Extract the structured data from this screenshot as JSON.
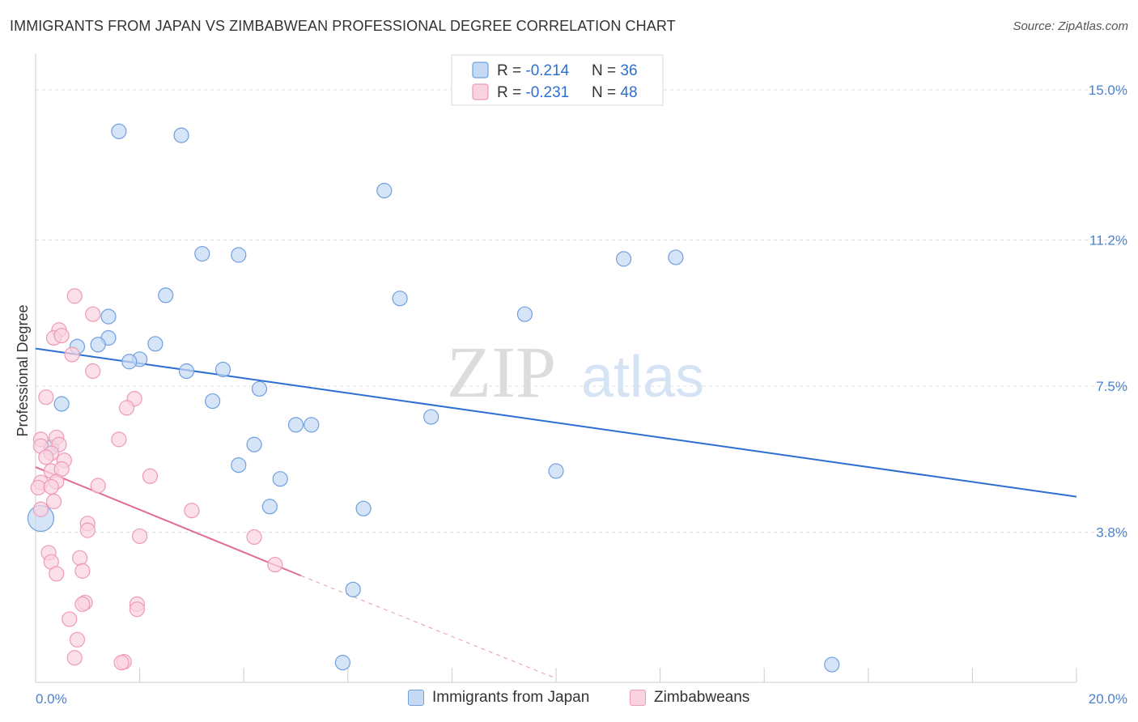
{
  "title": "IMMIGRANTS FROM JAPAN VS ZIMBABWEAN PROFESSIONAL DEGREE CORRELATION CHART",
  "source": "Source: ZipAtlas.com",
  "watermark": {
    "zip": "ZIP",
    "atlas": "atlas"
  },
  "chart_data": {
    "type": "scatter",
    "ylabel": "Professional Degree",
    "xlim": [
      0,
      20
    ],
    "ylim": [
      0,
      15.8
    ],
    "x_ticks": [
      {
        "value": 0,
        "label": "0.0%"
      },
      {
        "value": 20,
        "label": "20.0%"
      }
    ],
    "y_ticks": [
      {
        "value": 3.8,
        "label": "3.8%"
      },
      {
        "value": 7.5,
        "label": "7.5%"
      },
      {
        "value": 11.2,
        "label": "11.2%"
      },
      {
        "value": 15.0,
        "label": "15.0%"
      }
    ],
    "grid": true,
    "legend_position": "bottom-center",
    "stats": [
      {
        "r_label": "R = ",
        "r_value": "-0.214",
        "n_label": "N = ",
        "n_value": "36"
      },
      {
        "r_label": "R = ",
        "r_value": "-0.231",
        "n_label": "N = ",
        "n_value": "48"
      }
    ],
    "series": [
      {
        "name": "Immigrants from Japan",
        "color": "#6fa0e0",
        "fill": "#c5d9f5",
        "line_color": "#2c6fd1",
        "trend": {
          "x0": 0,
          "y0": 8.45,
          "x1": 20,
          "y1": 4.7
        },
        "points": [
          {
            "x": 1.6,
            "y": 13.95
          },
          {
            "x": 2.8,
            "y": 13.85
          },
          {
            "x": 6.7,
            "y": 12.45
          },
          {
            "x": 3.2,
            "y": 10.85
          },
          {
            "x": 3.9,
            "y": 10.82
          },
          {
            "x": 11.3,
            "y": 10.72
          },
          {
            "x": 12.3,
            "y": 10.76
          },
          {
            "x": 2.5,
            "y": 9.8
          },
          {
            "x": 7.0,
            "y": 9.72
          },
          {
            "x": 9.4,
            "y": 9.32
          },
          {
            "x": 1.4,
            "y": 9.26
          },
          {
            "x": 1.4,
            "y": 8.72
          },
          {
            "x": 1.2,
            "y": 8.55
          },
          {
            "x": 0.8,
            "y": 8.5
          },
          {
            "x": 2.3,
            "y": 8.57
          },
          {
            "x": 2.0,
            "y": 8.18
          },
          {
            "x": 1.8,
            "y": 8.12
          },
          {
            "x": 2.9,
            "y": 7.88
          },
          {
            "x": 3.6,
            "y": 7.92
          },
          {
            "x": 4.3,
            "y": 7.43
          },
          {
            "x": 3.4,
            "y": 7.12
          },
          {
            "x": 0.5,
            "y": 7.05
          },
          {
            "x": 7.6,
            "y": 6.72
          },
          {
            "x": 5.0,
            "y": 6.52
          },
          {
            "x": 5.3,
            "y": 6.52
          },
          {
            "x": 4.2,
            "y": 6.02
          },
          {
            "x": 0.3,
            "y": 5.95
          },
          {
            "x": 3.9,
            "y": 5.5
          },
          {
            "x": 10.0,
            "y": 5.35
          },
          {
            "x": 4.7,
            "y": 5.15
          },
          {
            "x": 4.5,
            "y": 4.45
          },
          {
            "x": 6.3,
            "y": 4.4
          },
          {
            "x": 0.1,
            "y": 4.15,
            "size": 16
          },
          {
            "x": 6.1,
            "y": 2.35
          },
          {
            "x": 5.9,
            "y": 0.5
          },
          {
            "x": 15.3,
            "y": 0.45
          }
        ]
      },
      {
        "name": "Zimbabweans",
        "color": "#ee9ab4",
        "fill": "#f9d3df",
        "line_color": "#e06b94",
        "trend": {
          "x0": 0,
          "y0": 5.45,
          "x1": 5.1,
          "y1": 2.7
        },
        "trend_dashed": {
          "x0": 5.1,
          "y0": 2.7,
          "x1": 10.0,
          "y1": 0.1
        },
        "points": [
          {
            "x": 0.75,
            "y": 9.78
          },
          {
            "x": 1.1,
            "y": 9.32
          },
          {
            "x": 0.45,
            "y": 8.92
          },
          {
            "x": 0.35,
            "y": 8.72
          },
          {
            "x": 0.5,
            "y": 8.78
          },
          {
            "x": 0.7,
            "y": 8.3
          },
          {
            "x": 1.1,
            "y": 7.88
          },
          {
            "x": 0.2,
            "y": 7.22
          },
          {
            "x": 1.9,
            "y": 7.18
          },
          {
            "x": 1.75,
            "y": 6.95
          },
          {
            "x": 0.4,
            "y": 6.2
          },
          {
            "x": 1.6,
            "y": 6.15
          },
          {
            "x": 0.1,
            "y": 6.15
          },
          {
            "x": 0.45,
            "y": 6.02
          },
          {
            "x": 0.1,
            "y": 5.98
          },
          {
            "x": 0.3,
            "y": 5.8
          },
          {
            "x": 0.2,
            "y": 5.7
          },
          {
            "x": 0.55,
            "y": 5.62
          },
          {
            "x": 0.3,
            "y": 5.35
          },
          {
            "x": 0.5,
            "y": 5.4
          },
          {
            "x": 2.2,
            "y": 5.22
          },
          {
            "x": 0.4,
            "y": 5.08
          },
          {
            "x": 0.1,
            "y": 5.06
          },
          {
            "x": 1.2,
            "y": 4.98
          },
          {
            "x": 0.05,
            "y": 4.93
          },
          {
            "x": 0.3,
            "y": 4.95
          },
          {
            "x": 0.35,
            "y": 4.58
          },
          {
            "x": 0.1,
            "y": 4.38
          },
          {
            "x": 3.0,
            "y": 4.35
          },
          {
            "x": 1.0,
            "y": 4.02
          },
          {
            "x": 1.0,
            "y": 3.85
          },
          {
            "x": 2.0,
            "y": 3.7
          },
          {
            "x": 4.2,
            "y": 3.68
          },
          {
            "x": 0.25,
            "y": 3.28
          },
          {
            "x": 0.85,
            "y": 3.15
          },
          {
            "x": 0.3,
            "y": 3.05
          },
          {
            "x": 4.6,
            "y": 2.98
          },
          {
            "x": 0.9,
            "y": 2.82
          },
          {
            "x": 0.4,
            "y": 2.75
          },
          {
            "x": 0.95,
            "y": 2.02
          },
          {
            "x": 0.9,
            "y": 1.98
          },
          {
            "x": 1.95,
            "y": 1.98
          },
          {
            "x": 1.95,
            "y": 1.85
          },
          {
            "x": 0.65,
            "y": 1.6
          },
          {
            "x": 0.8,
            "y": 1.08
          },
          {
            "x": 0.75,
            "y": 0.62
          },
          {
            "x": 1.7,
            "y": 0.52
          },
          {
            "x": 1.65,
            "y": 0.5
          }
        ]
      }
    ]
  }
}
